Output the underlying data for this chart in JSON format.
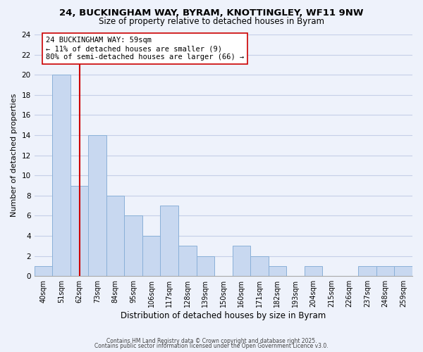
{
  "title1": "24, BUCKINGHAM WAY, BYRAM, KNOTTINGLEY, WF11 9NW",
  "title2": "Size of property relative to detached houses in Byram",
  "xlabel": "Distribution of detached houses by size in Byram",
  "ylabel": "Number of detached properties",
  "bin_labels": [
    "40sqm",
    "51sqm",
    "62sqm",
    "73sqm",
    "84sqm",
    "95sqm",
    "106sqm",
    "117sqm",
    "128sqm",
    "139sqm",
    "150sqm",
    "160sqm",
    "171sqm",
    "182sqm",
    "193sqm",
    "204sqm",
    "215sqm",
    "226sqm",
    "237sqm",
    "248sqm",
    "259sqm"
  ],
  "bar_heights": [
    1,
    20,
    9,
    14,
    8,
    6,
    4,
    7,
    3,
    2,
    0,
    3,
    2,
    1,
    0,
    1,
    0,
    0,
    1,
    1,
    1
  ],
  "bar_color": "#c8d8f0",
  "bar_edge_color": "#8ab0d8",
  "highlight_line_index": 2,
  "highlight_line_color": "#cc0000",
  "annotation_line1": "24 BUCKINGHAM WAY: 59sqm",
  "annotation_line2": "← 11% of detached houses are smaller (9)",
  "annotation_line3": "80% of semi-detached houses are larger (66) →",
  "annotation_box_color": "#ffffff",
  "annotation_box_edge": "#cc0000",
  "ylim": [
    0,
    24
  ],
  "yticks": [
    0,
    2,
    4,
    6,
    8,
    10,
    12,
    14,
    16,
    18,
    20,
    22,
    24
  ],
  "footer1": "Contains HM Land Registry data © Crown copyright and database right 2025.",
  "footer2": "Contains public sector information licensed under the Open Government Licence v3.0.",
  "background_color": "#eef2fb",
  "grid_color": "#c5cee8",
  "title_fontsize": 9.5,
  "subtitle_fontsize": 8.5,
  "annotation_fontsize": 7.5,
  "ylabel_fontsize": 8,
  "xlabel_fontsize": 8.5
}
